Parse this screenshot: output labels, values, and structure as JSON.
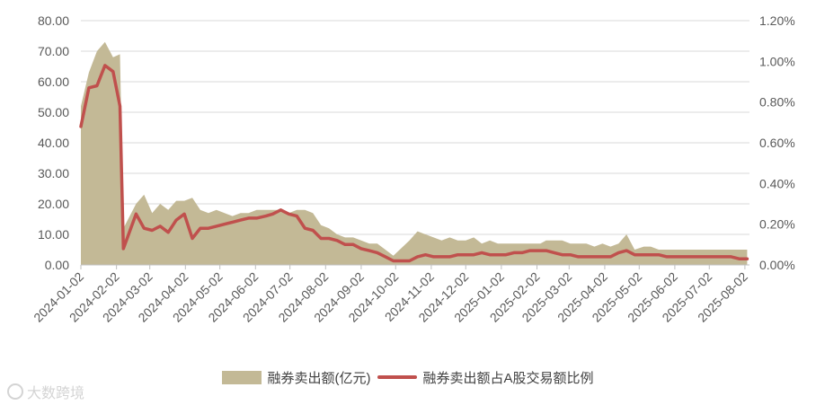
{
  "chart_data": {
    "type": "area",
    "x_tick_labels": [
      "2024-01-02",
      "2024-02-02",
      "2024-03-02",
      "2024-04-02",
      "2024-05-02",
      "2024-06-02",
      "2024-07-02",
      "2024-08-02",
      "2024-09-02",
      "2024-10-02",
      "2024-11-02",
      "2024-12-02",
      "2025-01-02",
      "2025-02-02",
      "2025-03-02",
      "2025-04-02",
      "2025-05-02",
      "2025-06-02",
      "2025-07-02",
      "2025-08-02"
    ],
    "y_left_ticks": [
      "0.00",
      "10.00",
      "20.00",
      "30.00",
      "40.00",
      "50.00",
      "60.00",
      "70.00",
      "80.00"
    ],
    "y_right_ticks": [
      "0.00%",
      "0.20%",
      "0.40%",
      "0.60%",
      "0.80%",
      "1.00%",
      "1.20%"
    ],
    "ylim_left": [
      0,
      80
    ],
    "ylim_right": [
      0,
      1.2
    ],
    "grid": "horizontal",
    "legend_position": "bottom",
    "series": [
      {
        "name": "融券卖出额(亿元)",
        "axis": "left",
        "kind": "area",
        "color": "#c3b996",
        "x": [
          "2024-01-02",
          "2024-01-09",
          "2024-01-16",
          "2024-01-23",
          "2024-01-30",
          "2024-02-05",
          "2024-02-08",
          "2024-02-19",
          "2024-02-26",
          "2024-03-04",
          "2024-03-11",
          "2024-03-18",
          "2024-03-25",
          "2024-04-01",
          "2024-04-08",
          "2024-04-15",
          "2024-04-22",
          "2024-04-29",
          "2024-05-13",
          "2024-05-20",
          "2024-05-27",
          "2024-06-03",
          "2024-06-11",
          "2024-06-17",
          "2024-06-24",
          "2024-07-01",
          "2024-07-08",
          "2024-07-15",
          "2024-07-22",
          "2024-07-29",
          "2024-08-05",
          "2024-08-12",
          "2024-08-19",
          "2024-08-26",
          "2024-09-02",
          "2024-09-09",
          "2024-09-16",
          "2024-09-23",
          "2024-09-30",
          "2024-10-14",
          "2024-10-21",
          "2024-10-28",
          "2024-11-04",
          "2024-11-11",
          "2024-11-18",
          "2024-11-25",
          "2024-12-02",
          "2024-12-09",
          "2024-12-16",
          "2024-12-23",
          "2024-12-30",
          "2025-01-06",
          "2025-01-13",
          "2025-01-20",
          "2025-01-27",
          "2025-02-05",
          "2025-02-10",
          "2025-02-17",
          "2025-02-24",
          "2025-03-03",
          "2025-03-10",
          "2025-03-17",
          "2025-03-24",
          "2025-03-31",
          "2025-04-07",
          "2025-04-14",
          "2025-04-21",
          "2025-04-28",
          "2025-05-06",
          "2025-05-12",
          "2025-05-19",
          "2025-05-26",
          "2025-06-03",
          "2025-06-09",
          "2025-06-16",
          "2025-06-23",
          "2025-06-30",
          "2025-07-07",
          "2025-07-14",
          "2025-07-21",
          "2025-07-28",
          "2025-08-04"
        ],
        "values": [
          52,
          63,
          70,
          73,
          68,
          69,
          12,
          20,
          23,
          17,
          20,
          18,
          21,
          21,
          22,
          18,
          17,
          18,
          16,
          17,
          17,
          18,
          18,
          18,
          18,
          17,
          18,
          18,
          17,
          13,
          12,
          10,
          9,
          9,
          8,
          7,
          7,
          5,
          3,
          8,
          11,
          10,
          9,
          8,
          9,
          8,
          8,
          9,
          7,
          8,
          7,
          7,
          7,
          7,
          7,
          7,
          8,
          8,
          8,
          7,
          7,
          7,
          6,
          7,
          6,
          7,
          10,
          5,
          6,
          6,
          5,
          5,
          5,
          5,
          5,
          5,
          5,
          5,
          5,
          5,
          5,
          5
        ]
      },
      {
        "name": "融券卖出额占A股交易额比例",
        "axis": "right",
        "kind": "line",
        "unit": "%",
        "color": "#c0504d",
        "x": [
          "2024-01-02",
          "2024-01-09",
          "2024-01-16",
          "2024-01-23",
          "2024-01-30",
          "2024-02-05",
          "2024-02-08",
          "2024-02-19",
          "2024-02-26",
          "2024-03-04",
          "2024-03-11",
          "2024-03-18",
          "2024-03-25",
          "2024-04-01",
          "2024-04-08",
          "2024-04-15",
          "2024-04-22",
          "2024-04-29",
          "2024-05-13",
          "2024-05-20",
          "2024-05-27",
          "2024-06-03",
          "2024-06-11",
          "2024-06-17",
          "2024-06-24",
          "2024-07-01",
          "2024-07-08",
          "2024-07-15",
          "2024-07-22",
          "2024-07-29",
          "2024-08-05",
          "2024-08-12",
          "2024-08-19",
          "2024-08-26",
          "2024-09-02",
          "2024-09-09",
          "2024-09-16",
          "2024-09-23",
          "2024-09-30",
          "2024-10-14",
          "2024-10-21",
          "2024-10-28",
          "2024-11-04",
          "2024-11-11",
          "2024-11-18",
          "2024-11-25",
          "2024-12-02",
          "2024-12-09",
          "2024-12-16",
          "2024-12-23",
          "2024-12-30",
          "2025-01-06",
          "2025-01-13",
          "2025-01-20",
          "2025-01-27",
          "2025-02-05",
          "2025-02-10",
          "2025-02-17",
          "2025-02-24",
          "2025-03-03",
          "2025-03-10",
          "2025-03-17",
          "2025-03-24",
          "2025-03-31",
          "2025-04-07",
          "2025-04-14",
          "2025-04-21",
          "2025-04-28",
          "2025-05-06",
          "2025-05-12",
          "2025-05-19",
          "2025-05-26",
          "2025-06-03",
          "2025-06-09",
          "2025-06-16",
          "2025-06-23",
          "2025-06-30",
          "2025-07-07",
          "2025-07-14",
          "2025-07-21",
          "2025-07-28",
          "2025-08-04"
        ],
        "values": [
          0.68,
          0.87,
          0.88,
          0.98,
          0.95,
          0.78,
          0.08,
          0.25,
          0.18,
          0.17,
          0.19,
          0.16,
          0.22,
          0.25,
          0.13,
          0.18,
          0.18,
          0.19,
          0.21,
          0.22,
          0.23,
          0.23,
          0.24,
          0.25,
          0.27,
          0.25,
          0.24,
          0.18,
          0.17,
          0.13,
          0.13,
          0.12,
          0.1,
          0.1,
          0.08,
          0.07,
          0.06,
          0.04,
          0.02,
          0.02,
          0.04,
          0.05,
          0.04,
          0.04,
          0.04,
          0.05,
          0.05,
          0.05,
          0.06,
          0.05,
          0.05,
          0.05,
          0.06,
          0.06,
          0.07,
          0.07,
          0.07,
          0.06,
          0.05,
          0.05,
          0.04,
          0.04,
          0.04,
          0.04,
          0.04,
          0.06,
          0.07,
          0.05,
          0.05,
          0.05,
          0.05,
          0.04,
          0.04,
          0.04,
          0.04,
          0.04,
          0.04,
          0.04,
          0.04,
          0.04,
          0.03,
          0.03
        ]
      }
    ]
  },
  "watermark": "大数跨境"
}
